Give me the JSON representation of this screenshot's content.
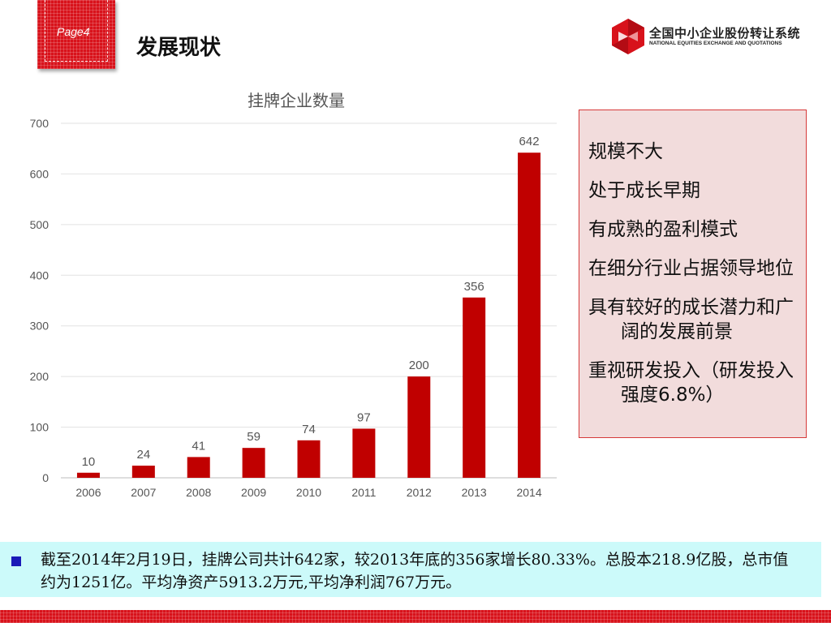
{
  "header": {
    "page_label": "Page4",
    "title": "发展现状",
    "logo_cn": "全国中小企业股份转让系统",
    "logo_en": "NATIONAL EQUITIES EXCHANGE AND QUOTATIONS"
  },
  "colors": {
    "accent": "#c00000",
    "badge": "#d8121b",
    "note_bg": "#ccfafa",
    "side_bg": "#f2dcdc"
  },
  "chart_data": {
    "type": "bar",
    "title": "挂牌企业数量",
    "xlabel": "",
    "ylabel": "",
    "categories": [
      "2006",
      "2007",
      "2008",
      "2009",
      "2010",
      "2011",
      "2012",
      "2013",
      "2014"
    ],
    "values": [
      10,
      24,
      41,
      59,
      74,
      97,
      200,
      356,
      642
    ],
    "data_labels": [
      "10",
      "24",
      "41",
      "59",
      "74",
      "97",
      "200",
      "356",
      "642"
    ],
    "ylim": [
      0,
      700
    ],
    "yticks": [
      0,
      100,
      200,
      300,
      400,
      500,
      600,
      700
    ],
    "grid": true,
    "legend": "none",
    "bar_color": "#c00000"
  },
  "side_points": [
    "规模不大",
    "处于成长早期",
    "有成熟的盈利模式",
    "在细分行业占据领导地位",
    "具有较好的成长潜力和广阔的发展前景",
    "重视研发投入（研发投入强度6.8%）"
  ],
  "note": "截至2014年2月19日，挂牌公司共计642家，较2013年底的356家增长80.33%。总股本218.9亿股，总市值约为1251亿。平均净资产5913.2万元,平均净利润767万元。"
}
